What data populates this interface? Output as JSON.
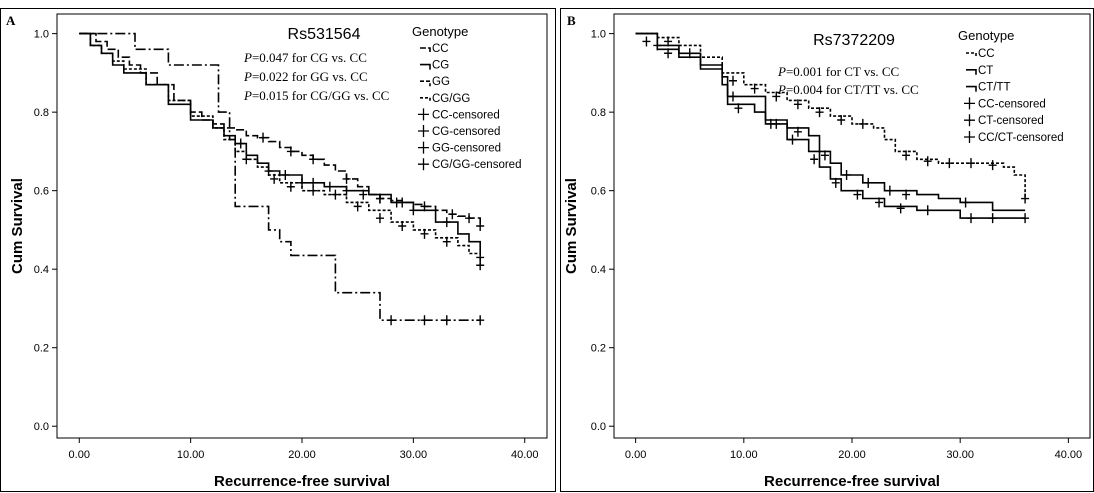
{
  "chart_data": [
    {
      "type": "line",
      "panel_label": "A",
      "title": "Rs531564",
      "xlabel": "Recurrence-free survival",
      "ylabel": "Cum Survival",
      "xlim": [
        -2,
        42
      ],
      "ylim": [
        -0.03,
        1.05
      ],
      "xticks": [
        "0.00",
        "10.00",
        "20.00",
        "30.00",
        "40.00"
      ],
      "yticks": [
        "0.0",
        "0.2",
        "0.4",
        "0.6",
        "0.8",
        "1.0"
      ],
      "legend": {
        "title": "Genotype",
        "position": "top-right",
        "entries": [
          "CC",
          "CG",
          "GG",
          "CG/GG",
          "CC-censored",
          "CG-censored",
          "GG-censored",
          "CG/GG-censored"
        ]
      },
      "annotations": [
        {
          "p": "P",
          "text": "=0.047 for CG vs. CC"
        },
        {
          "p": "P",
          "text": "=0.022 for GG vs. CC"
        },
        {
          "p": "P",
          "text": "=0.015 for CG/GG vs. CC"
        }
      ],
      "series": [
        {
          "name": "CC",
          "dash": "8,3",
          "points": [
            [
              0,
              1
            ],
            [
              1.5,
              0.98
            ],
            [
              2.5,
              0.96
            ],
            [
              3.5,
              0.94
            ],
            [
              4.5,
              0.92
            ],
            [
              5.5,
              0.9
            ],
            [
              7,
              0.87
            ],
            [
              8.5,
              0.83
            ],
            [
              10,
              0.8
            ],
            [
              11,
              0.78
            ],
            [
              12,
              0.77
            ],
            [
              13,
              0.76
            ],
            [
              14,
              0.755
            ],
            [
              15,
              0.74
            ],
            [
              16,
              0.735
            ],
            [
              17,
              0.725
            ],
            [
              18,
              0.71
            ],
            [
              19,
              0.7
            ],
            [
              20,
              0.69
            ],
            [
              21,
              0.68
            ],
            [
              22,
              0.665
            ],
            [
              23,
              0.65
            ],
            [
              24,
              0.63
            ],
            [
              25,
              0.61
            ],
            [
              26,
              0.59
            ],
            [
              27,
              0.58
            ],
            [
              28,
              0.575
            ],
            [
              29,
              0.57
            ],
            [
              30,
              0.565
            ],
            [
              31,
              0.56
            ],
            [
              32,
              0.55
            ],
            [
              33,
              0.54
            ],
            [
              34,
              0.535
            ],
            [
              35,
              0.53
            ],
            [
              36,
              0.51
            ]
          ],
          "censored": [
            [
              16.5,
              0.735
            ],
            [
              19,
              0.7
            ],
            [
              21,
              0.68
            ],
            [
              24,
              0.63
            ],
            [
              27,
              0.58
            ],
            [
              29,
              0.57
            ],
            [
              31,
              0.56
            ],
            [
              33.5,
              0.54
            ],
            [
              35,
              0.53
            ],
            [
              36,
              0.51
            ]
          ]
        },
        {
          "name": "CG",
          "dash": "",
          "points": [
            [
              0,
              1
            ],
            [
              1,
              0.97
            ],
            [
              2,
              0.95
            ],
            [
              3,
              0.92
            ],
            [
              4,
              0.9
            ],
            [
              6,
              0.87
            ],
            [
              8,
              0.82
            ],
            [
              10,
              0.78
            ],
            [
              12,
              0.76
            ],
            [
              13,
              0.74
            ],
            [
              14,
              0.72
            ],
            [
              15,
              0.69
            ],
            [
              16,
              0.67
            ],
            [
              17,
              0.65
            ],
            [
              18,
              0.64
            ],
            [
              20,
              0.62
            ],
            [
              22,
              0.61
            ],
            [
              24,
              0.6
            ],
            [
              26,
              0.59
            ],
            [
              28,
              0.57
            ],
            [
              30,
              0.55
            ],
            [
              32,
              0.52
            ],
            [
              34,
              0.49
            ],
            [
              35,
              0.47
            ],
            [
              36,
              0.44
            ]
          ],
          "censored": [
            [
              14.5,
              0.72
            ],
            [
              17,
              0.65
            ],
            [
              18.5,
              0.64
            ],
            [
              20,
              0.62
            ],
            [
              21,
              0.62
            ],
            [
              22.5,
              0.61
            ],
            [
              24,
              0.6
            ],
            [
              25.5,
              0.59
            ],
            [
              27,
              0.58
            ],
            [
              28.5,
              0.57
            ],
            [
              30,
              0.55
            ],
            [
              33,
              0.52
            ],
            [
              36,
              0.43
            ]
          ]
        },
        {
          "name": "GG",
          "dash": "10,3,2,3",
          "points": [
            [
              0,
              1
            ],
            [
              2.5,
              1
            ],
            [
              5,
              0.96
            ],
            [
              7,
              0.96
            ],
            [
              8,
              0.92
            ],
            [
              11.5,
              0.92
            ],
            [
              12.5,
              0.8
            ],
            [
              13.5,
              0.73
            ],
            [
              14,
              0.56
            ],
            [
              16,
              0.56
            ],
            [
              17,
              0.5
            ],
            [
              18,
              0.47
            ],
            [
              19,
              0.435
            ],
            [
              22,
              0.435
            ],
            [
              23,
              0.34
            ],
            [
              25,
              0.34
            ],
            [
              27,
              0.27
            ],
            [
              36,
              0.27
            ]
          ],
          "censored": [
            [
              28,
              0.27
            ],
            [
              31,
              0.27
            ],
            [
              33,
              0.27
            ],
            [
              36,
              0.27
            ]
          ]
        },
        {
          "name": "CG/GG",
          "dash": "3,2",
          "points": [
            [
              0,
              1
            ],
            [
              1,
              0.97
            ],
            [
              2,
              0.95
            ],
            [
              3,
              0.93
            ],
            [
              4,
              0.91
            ],
            [
              6,
              0.87
            ],
            [
              8,
              0.83
            ],
            [
              10,
              0.79
            ],
            [
              12,
              0.76
            ],
            [
              13,
              0.73
            ],
            [
              14,
              0.7
            ],
            [
              15,
              0.68
            ],
            [
              16,
              0.66
            ],
            [
              17,
              0.64
            ],
            [
              18,
              0.62
            ],
            [
              20,
              0.6
            ],
            [
              22,
              0.59
            ],
            [
              24,
              0.57
            ],
            [
              26,
              0.55
            ],
            [
              28,
              0.52
            ],
            [
              30,
              0.5
            ],
            [
              32,
              0.48
            ],
            [
              34,
              0.46
            ],
            [
              35,
              0.44
            ],
            [
              36,
              0.41
            ]
          ],
          "censored": [
            [
              15,
              0.68
            ],
            [
              17.5,
              0.63
            ],
            [
              19,
              0.61
            ],
            [
              21,
              0.6
            ],
            [
              23,
              0.59
            ],
            [
              25,
              0.56
            ],
            [
              27,
              0.53
            ],
            [
              29,
              0.51
            ],
            [
              31,
              0.49
            ],
            [
              33,
              0.47
            ],
            [
              36,
              0.41
            ]
          ]
        }
      ]
    },
    {
      "type": "line",
      "panel_label": "B",
      "title": "Rs7372209",
      "xlabel": "Recurrence-free survival",
      "ylabel": "Cum Survival",
      "xlim": [
        -2,
        42
      ],
      "ylim": [
        -0.03,
        1.05
      ],
      "xticks": [
        "0.00",
        "10.00",
        "20.00",
        "30.00",
        "40.00"
      ],
      "yticks": [
        "0.0",
        "0.2",
        "0.4",
        "0.6",
        "0.8",
        "1.0"
      ],
      "legend": {
        "title": "Genotype",
        "position": "top-right",
        "entries": [
          "CC",
          "CT",
          "CT/TT",
          "CC-censored",
          "CT-censored",
          "CC/CT-censored"
        ]
      },
      "annotations": [
        {
          "p": "P",
          "text": "=0.001 for CT vs. CC"
        },
        {
          "p": "P",
          "text": "=0.004 for CT/TT vs. CC"
        }
      ],
      "series": [
        {
          "name": "CC",
          "dash": "3,2",
          "points": [
            [
              0,
              1
            ],
            [
              2,
              0.99
            ],
            [
              4,
              0.97
            ],
            [
              6,
              0.94
            ],
            [
              8,
              0.9
            ],
            [
              10,
              0.87
            ],
            [
              12,
              0.85
            ],
            [
              14,
              0.83
            ],
            [
              16,
              0.81
            ],
            [
              18,
              0.79
            ],
            [
              20,
              0.77
            ],
            [
              22,
              0.76
            ],
            [
              23,
              0.73
            ],
            [
              24,
              0.7
            ],
            [
              26,
              0.68
            ],
            [
              28,
              0.67
            ],
            [
              32,
              0.67
            ],
            [
              34,
              0.66
            ],
            [
              35,
              0.64
            ],
            [
              36,
              0.58
            ]
          ],
          "censored": [
            [
              3,
              0.98
            ],
            [
              5,
              0.95
            ],
            [
              9,
              0.88
            ],
            [
              11,
              0.86
            ],
            [
              13,
              0.84
            ],
            [
              15,
              0.82
            ],
            [
              17,
              0.8
            ],
            [
              19,
              0.78
            ],
            [
              21,
              0.77
            ],
            [
              25,
              0.69
            ],
            [
              27,
              0.675
            ],
            [
              29,
              0.67
            ],
            [
              31,
              0.67
            ],
            [
              33,
              0.665
            ],
            [
              36,
              0.58
            ]
          ]
        },
        {
          "name": "CT",
          "dash": "",
          "points": [
            [
              0,
              1
            ],
            [
              2,
              0.97
            ],
            [
              4,
              0.95
            ],
            [
              6,
              0.92
            ],
            [
              8,
              0.89
            ],
            [
              8.5,
              0.84
            ],
            [
              11,
              0.84
            ],
            [
              12,
              0.78
            ],
            [
              14,
              0.76
            ],
            [
              16,
              0.74
            ],
            [
              17,
              0.7
            ],
            [
              18,
              0.67
            ],
            [
              19,
              0.64
            ],
            [
              21,
              0.62
            ],
            [
              23,
              0.6
            ],
            [
              26,
              0.59
            ],
            [
              28,
              0.58
            ],
            [
              30,
              0.57
            ],
            [
              32,
              0.57
            ],
            [
              33,
              0.55
            ],
            [
              36,
              0.55
            ]
          ],
          "censored": [
            [
              2,
              0.97
            ],
            [
              9,
              0.84
            ],
            [
              13,
              0.77
            ],
            [
              15,
              0.75
            ],
            [
              17.5,
              0.69
            ],
            [
              19.5,
              0.64
            ],
            [
              21.5,
              0.62
            ],
            [
              23.5,
              0.6
            ],
            [
              25,
              0.59
            ],
            [
              30.5,
              0.57
            ]
          ]
        },
        {
          "name": "CT/TT",
          "dash": "",
          "points": [
            [
              0,
              1
            ],
            [
              2,
              0.96
            ],
            [
              4,
              0.94
            ],
            [
              6,
              0.91
            ],
            [
              8,
              0.87
            ],
            [
              8.5,
              0.82
            ],
            [
              11,
              0.8
            ],
            [
              12,
              0.77
            ],
            [
              14,
              0.73
            ],
            [
              16,
              0.7
            ],
            [
              17,
              0.66
            ],
            [
              18,
              0.63
            ],
            [
              19,
              0.6
            ],
            [
              21,
              0.58
            ],
            [
              23,
              0.56
            ],
            [
              26,
              0.55
            ],
            [
              28,
              0.55
            ],
            [
              30,
              0.53
            ],
            [
              36,
              0.53
            ]
          ],
          "censored": [
            [
              1,
              0.98
            ],
            [
              3,
              0.95
            ],
            [
              9.5,
              0.81
            ],
            [
              12.5,
              0.77
            ],
            [
              14.5,
              0.73
            ],
            [
              16.5,
              0.68
            ],
            [
              18.5,
              0.62
            ],
            [
              20.5,
              0.59
            ],
            [
              22.5,
              0.57
            ],
            [
              24.5,
              0.555
            ],
            [
              27,
              0.55
            ],
            [
              31,
              0.53
            ],
            [
              33,
              0.53
            ],
            [
              36,
              0.53
            ]
          ]
        }
      ]
    }
  ]
}
